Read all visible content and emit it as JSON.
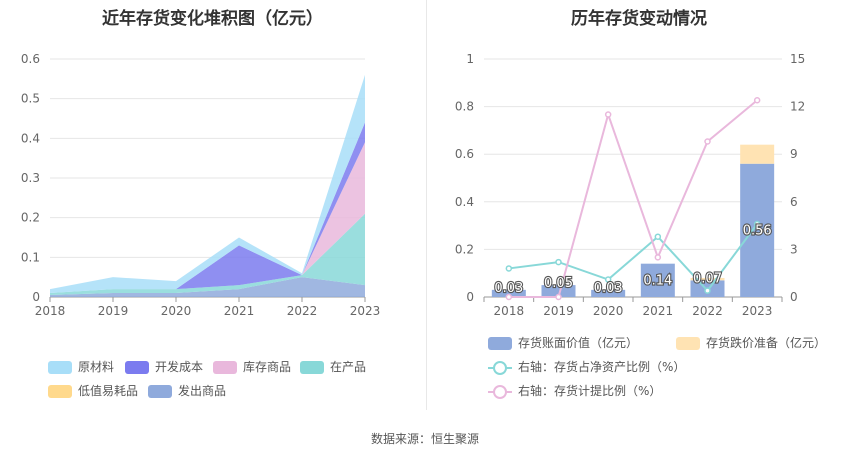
{
  "source_text": "数据来源：恒生聚源",
  "chart_data": [
    {
      "type": "area",
      "title": "近年存货变化堆积图（亿元）",
      "x": [
        "2018",
        "2019",
        "2020",
        "2021",
        "2022",
        "2023"
      ],
      "ylim": [
        0,
        0.6
      ],
      "yticks": [
        "0",
        "0.1",
        "0.2",
        "0.3",
        "0.4",
        "0.5",
        "0.6"
      ],
      "grid": true,
      "legend_position": "bottom",
      "series": [
        {
          "name": "发出商品",
          "color": "#8faadc",
          "values": [
            0.005,
            0.01,
            0.01,
            0.02,
            0.05,
            0.03
          ]
        },
        {
          "name": "低值易耗品",
          "color": "#ffd98c",
          "values": [
            0,
            0,
            0,
            0,
            0,
            0
          ]
        },
        {
          "name": "在产品",
          "color": "#88d8d8",
          "values": [
            0.005,
            0.01,
            0.01,
            0.01,
            0.005,
            0.18
          ]
        },
        {
          "name": "库存商品",
          "color": "#e9b8dc",
          "values": [
            0,
            0,
            0,
            0,
            0,
            0.18
          ]
        },
        {
          "name": "开发成本",
          "color": "#7b7bef",
          "values": [
            0,
            0,
            0,
            0.1,
            0,
            0.05
          ]
        },
        {
          "name": "原材料",
          "color": "#a8def8",
          "values": [
            0.01,
            0.03,
            0.02,
            0.02,
            0.005,
            0.12
          ]
        }
      ],
      "legend_order": [
        "原材料",
        "开发成本",
        "库存商品",
        "在产品",
        "低值易耗品",
        "发出商品"
      ]
    },
    {
      "type": "bar",
      "title": "历年存货变动情况",
      "categories": [
        "2018",
        "2019",
        "2020",
        "2021",
        "2022",
        "2023"
      ],
      "ylim": [
        0,
        1
      ],
      "yticks": [
        "0",
        "0.2",
        "0.4",
        "0.6",
        "0.8",
        "1"
      ],
      "y2lim": [
        0,
        15
      ],
      "y2ticks": [
        "0",
        "3",
        "6",
        "9",
        "12",
        "15"
      ],
      "grid": true,
      "legend_position": "bottom",
      "bars": [
        {
          "name": "存货账面价值（亿元）",
          "color": "#8faadc",
          "values": [
            0.03,
            0.05,
            0.03,
            0.14,
            0.07,
            0.56
          ],
          "labels": [
            "0.03",
            "0.05",
            "0.03",
            "0.14",
            "0.07",
            "0.56"
          ]
        },
        {
          "name": "存货跌价准备（亿元）",
          "color": "#ffe3b3",
          "values": [
            0,
            0,
            0,
            0,
            0.01,
            0.08
          ]
        }
      ],
      "lines": [
        {
          "name": "右轴：存货占净资产比例（%）",
          "color": "#88d8d8",
          "values": [
            1.8,
            2.2,
            1.1,
            3.8,
            0.4,
            4.6
          ]
        },
        {
          "name": "右轴：存货计提比例（%）",
          "color": "#e9b8dc",
          "values": [
            0,
            0,
            11.5,
            2.5,
            9.8,
            12.4
          ]
        }
      ]
    }
  ]
}
